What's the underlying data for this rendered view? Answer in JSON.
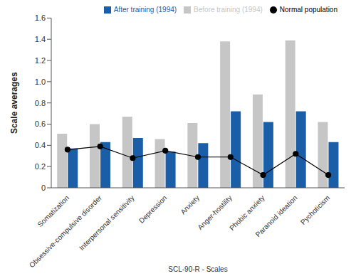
{
  "chart_data": {
    "type": "bar",
    "x_label": "SCL-90-R - Scales",
    "y_label": "Scale averages",
    "categories": [
      "Somatization",
      "Obsessive-compulsive disorder",
      "Interpersonal sensitivity",
      "Depression",
      "Anxiety",
      "Anger-hostility",
      "Phobic anxiety",
      "Paranoid ideation",
      "Pychoticism"
    ],
    "series": [
      {
        "name": "Before training (1994)",
        "type": "bar",
        "color": "#c6c6c6",
        "values": [
          0.51,
          0.6,
          0.67,
          0.46,
          0.61,
          1.38,
          0.88,
          1.39,
          0.62
        ]
      },
      {
        "name": "After training (1994)",
        "type": "bar",
        "color": "#1a5ea8",
        "values": [
          0.37,
          0.43,
          0.47,
          0.34,
          0.42,
          0.72,
          0.62,
          0.72,
          0.43
        ]
      },
      {
        "name": "Normal population",
        "type": "line",
        "color": "#000000",
        "marker": "circle",
        "line_style": "solid",
        "values": [
          0.36,
          0.39,
          0.28,
          0.35,
          0.29,
          0.29,
          0.12,
          0.32,
          0.12
        ]
      }
    ],
    "ylim": [
      0,
      1.6
    ],
    "yticks": [
      0,
      0.2,
      0.4,
      0.6,
      0.8,
      {
        "value": 1,
        "label": "1.0"
      },
      1.2,
      1.4,
      1.6
    ],
    "grid": false,
    "legend": "top right"
  }
}
